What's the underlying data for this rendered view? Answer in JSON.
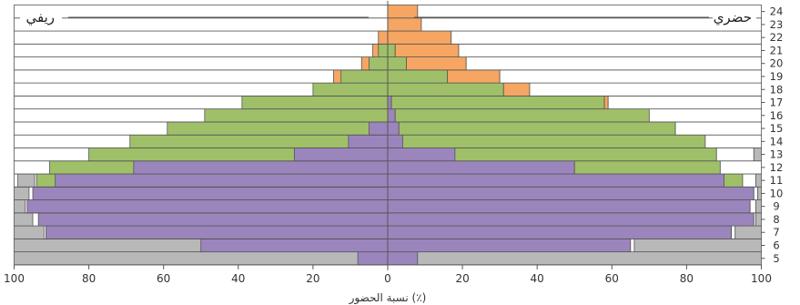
{
  "chart_data": {
    "type": "bar",
    "orientation": "horizontal-diverging",
    "labels": {
      "left": "ريفي",
      "right": "حضري"
    },
    "xlabel": "نسبة الحضور (٪)",
    "xlim": [
      -100,
      100
    ],
    "x_ticks": [
      -100,
      -80,
      -60,
      -40,
      -20,
      0,
      20,
      40,
      60,
      80,
      100
    ],
    "x_tick_labels": [
      "100",
      "80",
      "60",
      "40",
      "20",
      "0",
      "20",
      "40",
      "60",
      "80",
      "100"
    ],
    "grid": false,
    "categories": [
      5,
      6,
      7,
      8,
      9,
      10,
      11,
      12,
      13,
      14,
      15,
      16,
      17,
      18,
      19,
      20,
      21,
      22,
      23,
      24
    ],
    "colors": {
      "gray": "#b8b8b8",
      "purple": "#9b85bd",
      "green": "#9fc069",
      "orange": "#f6a662",
      "white": "#ffffff",
      "edge": "#555555"
    },
    "rows": [
      {
        "age": 5,
        "rural": [
          [
            "gray",
            100
          ],
          [
            "purple",
            8
          ]
        ],
        "urban": [
          [
            "purple",
            8
          ],
          [
            "gray",
            100
          ]
        ]
      },
      {
        "age": 6,
        "rural": [
          [
            "gray",
            100
          ],
          [
            "purple",
            50
          ]
        ],
        "urban": [
          [
            "purple",
            65
          ],
          [
            "white",
            66
          ],
          [
            "gray",
            100
          ]
        ]
      },
      {
        "age": 7,
        "rural": [
          [
            "gray",
            100
          ],
          [
            "white",
            92
          ],
          [
            "purple",
            91.5
          ]
        ],
        "urban": [
          [
            "purple",
            92
          ],
          [
            "white",
            93
          ],
          [
            "gray",
            100
          ]
        ]
      },
      {
        "age": 8,
        "rural": [
          [
            "gray",
            100
          ],
          [
            "white",
            95
          ],
          [
            "purple",
            93.5
          ]
        ],
        "urban": [
          [
            "purple",
            98
          ],
          [
            "white",
            98.5
          ],
          [
            "gray",
            100
          ]
        ]
      },
      {
        "age": 9,
        "rural": [
          [
            "gray",
            100
          ],
          [
            "white",
            97
          ],
          [
            "purple",
            96.5
          ]
        ],
        "urban": [
          [
            "purple",
            97
          ],
          [
            "white",
            98.5
          ],
          [
            "gray",
            100
          ]
        ]
      },
      {
        "age": 10,
        "rural": [
          [
            "gray",
            100
          ],
          [
            "white",
            96
          ],
          [
            "purple",
            95
          ]
        ],
        "urban": [
          [
            "purple",
            98
          ],
          [
            "white",
            99
          ],
          [
            "gray",
            100
          ]
        ]
      },
      {
        "age": 11,
        "rural": [
          [
            "white",
            100
          ],
          [
            "gray",
            99
          ],
          [
            "white",
            94.5
          ],
          [
            "green",
            94
          ],
          [
            "purple",
            89
          ]
        ],
        "urban": [
          [
            "purple",
            90
          ],
          [
            "green",
            95
          ],
          [
            "white",
            98.5
          ],
          [
            "gray",
            100
          ]
        ]
      },
      {
        "age": 12,
        "rural": [
          [
            "white",
            100
          ],
          [
            "green",
            90.5
          ],
          [
            "purple",
            68
          ]
        ],
        "urban": [
          [
            "purple",
            50
          ],
          [
            "green",
            89
          ],
          [
            "white",
            100
          ]
        ]
      },
      {
        "age": 13,
        "rural": [
          [
            "white",
            100
          ],
          [
            "green",
            80
          ],
          [
            "purple",
            25
          ]
        ],
        "urban": [
          [
            "purple",
            18
          ],
          [
            "green",
            88
          ],
          [
            "white",
            98
          ],
          [
            "gray",
            100
          ]
        ]
      },
      {
        "age": 14,
        "rural": [
          [
            "white",
            100
          ],
          [
            "green",
            69
          ],
          [
            "purple",
            10.5
          ]
        ],
        "urban": [
          [
            "purple",
            4
          ],
          [
            "green",
            85
          ],
          [
            "white",
            100
          ]
        ]
      },
      {
        "age": 15,
        "rural": [
          [
            "white",
            100
          ],
          [
            "green",
            59
          ],
          [
            "purple",
            5
          ]
        ],
        "urban": [
          [
            "purple",
            3
          ],
          [
            "green",
            77
          ],
          [
            "white",
            100
          ]
        ]
      },
      {
        "age": 16,
        "rural": [
          [
            "white",
            100
          ],
          [
            "green",
            49
          ]
        ],
        "urban": [
          [
            "purple",
            2
          ],
          [
            "green",
            70
          ],
          [
            "white",
            100
          ]
        ]
      },
      {
        "age": 17,
        "rural": [
          [
            "white",
            100
          ],
          [
            "green",
            39
          ]
        ],
        "urban": [
          [
            "purple",
            1
          ],
          [
            "green",
            58
          ],
          [
            "orange",
            59
          ],
          [
            "white",
            100
          ]
        ]
      },
      {
        "age": 18,
        "rural": [
          [
            "white",
            100
          ],
          [
            "green",
            20
          ]
        ],
        "urban": [
          [
            "green",
            31
          ],
          [
            "orange",
            38
          ],
          [
            "white",
            100
          ]
        ]
      },
      {
        "age": 19,
        "rural": [
          [
            "white",
            100
          ],
          [
            "orange",
            14.5
          ],
          [
            "green",
            12.5
          ]
        ],
        "urban": [
          [
            "green",
            16
          ],
          [
            "orange",
            30
          ],
          [
            "white",
            100
          ]
        ]
      },
      {
        "age": 20,
        "rural": [
          [
            "white",
            100
          ],
          [
            "orange",
            7
          ],
          [
            "green",
            5
          ]
        ],
        "urban": [
          [
            "green",
            5
          ],
          [
            "orange",
            21
          ],
          [
            "white",
            100
          ]
        ]
      },
      {
        "age": 21,
        "rural": [
          [
            "white",
            100
          ],
          [
            "orange",
            4
          ],
          [
            "green",
            2.5
          ]
        ],
        "urban": [
          [
            "green",
            2
          ],
          [
            "orange",
            19
          ],
          [
            "white",
            100
          ]
        ]
      },
      {
        "age": 22,
        "rural": [
          [
            "white",
            100
          ],
          [
            "orange",
            2.5
          ]
        ],
        "urban": [
          [
            "orange",
            17
          ],
          [
            "white",
            100
          ]
        ]
      },
      {
        "age": 23,
        "rural": [
          [
            "white",
            100
          ]
        ],
        "urban": [
          [
            "orange",
            9
          ],
          [
            "white",
            100
          ]
        ]
      },
      {
        "age": 24,
        "rural": [
          [
            "white",
            100
          ]
        ],
        "urban": [
          [
            "orange",
            8
          ],
          [
            "white",
            100
          ]
        ]
      }
    ]
  }
}
